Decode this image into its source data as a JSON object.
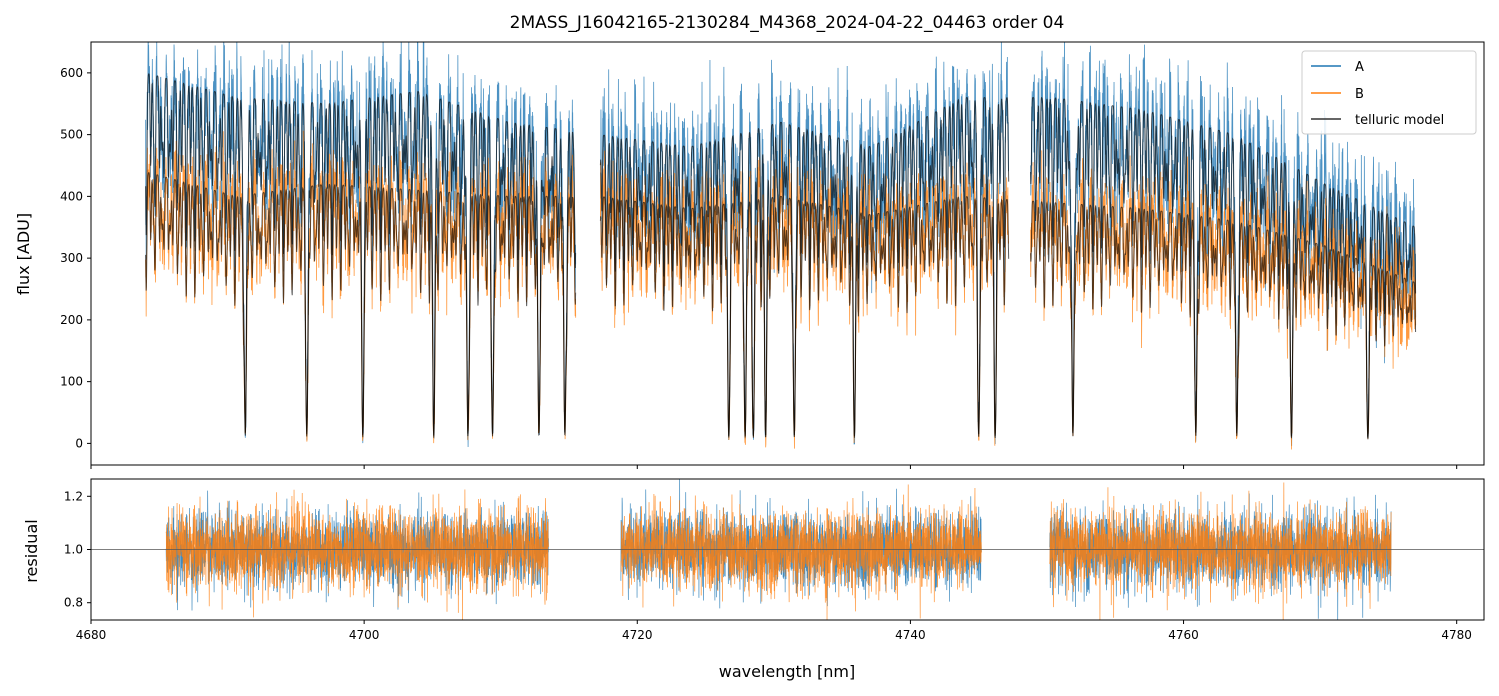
{
  "chart_data": [
    {
      "type": "line",
      "title": "2MASS_J16042165-2130284_M4368_2024-04-22_04463  order 04",
      "xlabel": "",
      "ylabel": "flux [ADU]",
      "xlim": [
        4680,
        4782
      ],
      "ylim": [
        -35,
        650
      ],
      "yticks": [
        0,
        100,
        200,
        300,
        400,
        500,
        600
      ],
      "xticks": [
        4680,
        4700,
        4720,
        4740,
        4760,
        4780
      ],
      "xtick_labels_shown": false,
      "legend": {
        "placement": "top-right",
        "entries": [
          "A",
          "B",
          "telluric model"
        ]
      },
      "segments": [
        [
          4684.0,
          4715.5
        ],
        [
          4717.3,
          4747.2
        ],
        [
          4748.8,
          4777.0
        ]
      ],
      "series": [
        {
          "name": "A",
          "color": "#1f77b4",
          "description_values": {
            "approx_continuum": [
              600,
              560,
              550,
              570,
              520,
              500,
              480,
              520,
              480,
              560,
              560,
              540,
              500,
              420,
              350
            ]
          }
        },
        {
          "name": "B",
          "color": "#ff7f0e",
          "description_values": {
            "approx_continuum": [
              440,
              400,
              420,
              410,
              400,
              400,
              380,
              400,
              370,
              400,
              390,
              380,
              360,
              320,
              260
            ]
          }
        },
        {
          "name": "telluric model",
          "color": "#000000"
        }
      ],
      "absorption_lines_x": [
        4691.3,
        4695.8,
        4699.9,
        4705.1,
        4707.6,
        4709.4,
        4712.8,
        4714.7,
        4726.7,
        4727.9,
        4728.5,
        4729.4,
        4731.5,
        4735.9,
        4745.0,
        4746.2,
        4751.9,
        4760.9,
        4763.9,
        4767.9,
        4773.5
      ]
    },
    {
      "type": "line",
      "title": "",
      "xlabel": "wavelength [nm]",
      "ylabel": "residual",
      "xlim": [
        4680,
        4782
      ],
      "ylim": [
        0.735,
        1.265
      ],
      "yticks": [
        0.8,
        1.0,
        1.2
      ],
      "ytick_labels": [
        "0.8",
        "1.0",
        "1.2"
      ],
      "xticks": [
        4680,
        4700,
        4720,
        4740,
        4760,
        4780
      ],
      "reference_line": 1.0,
      "segments": [
        [
          4685.5,
          4713.5
        ],
        [
          4718.8,
          4745.2
        ],
        [
          4750.2,
          4775.2
        ]
      ],
      "series": [
        {
          "name": "A",
          "color": "#1f77b4"
        },
        {
          "name": "B",
          "color": "#ff7f0e"
        }
      ]
    }
  ]
}
